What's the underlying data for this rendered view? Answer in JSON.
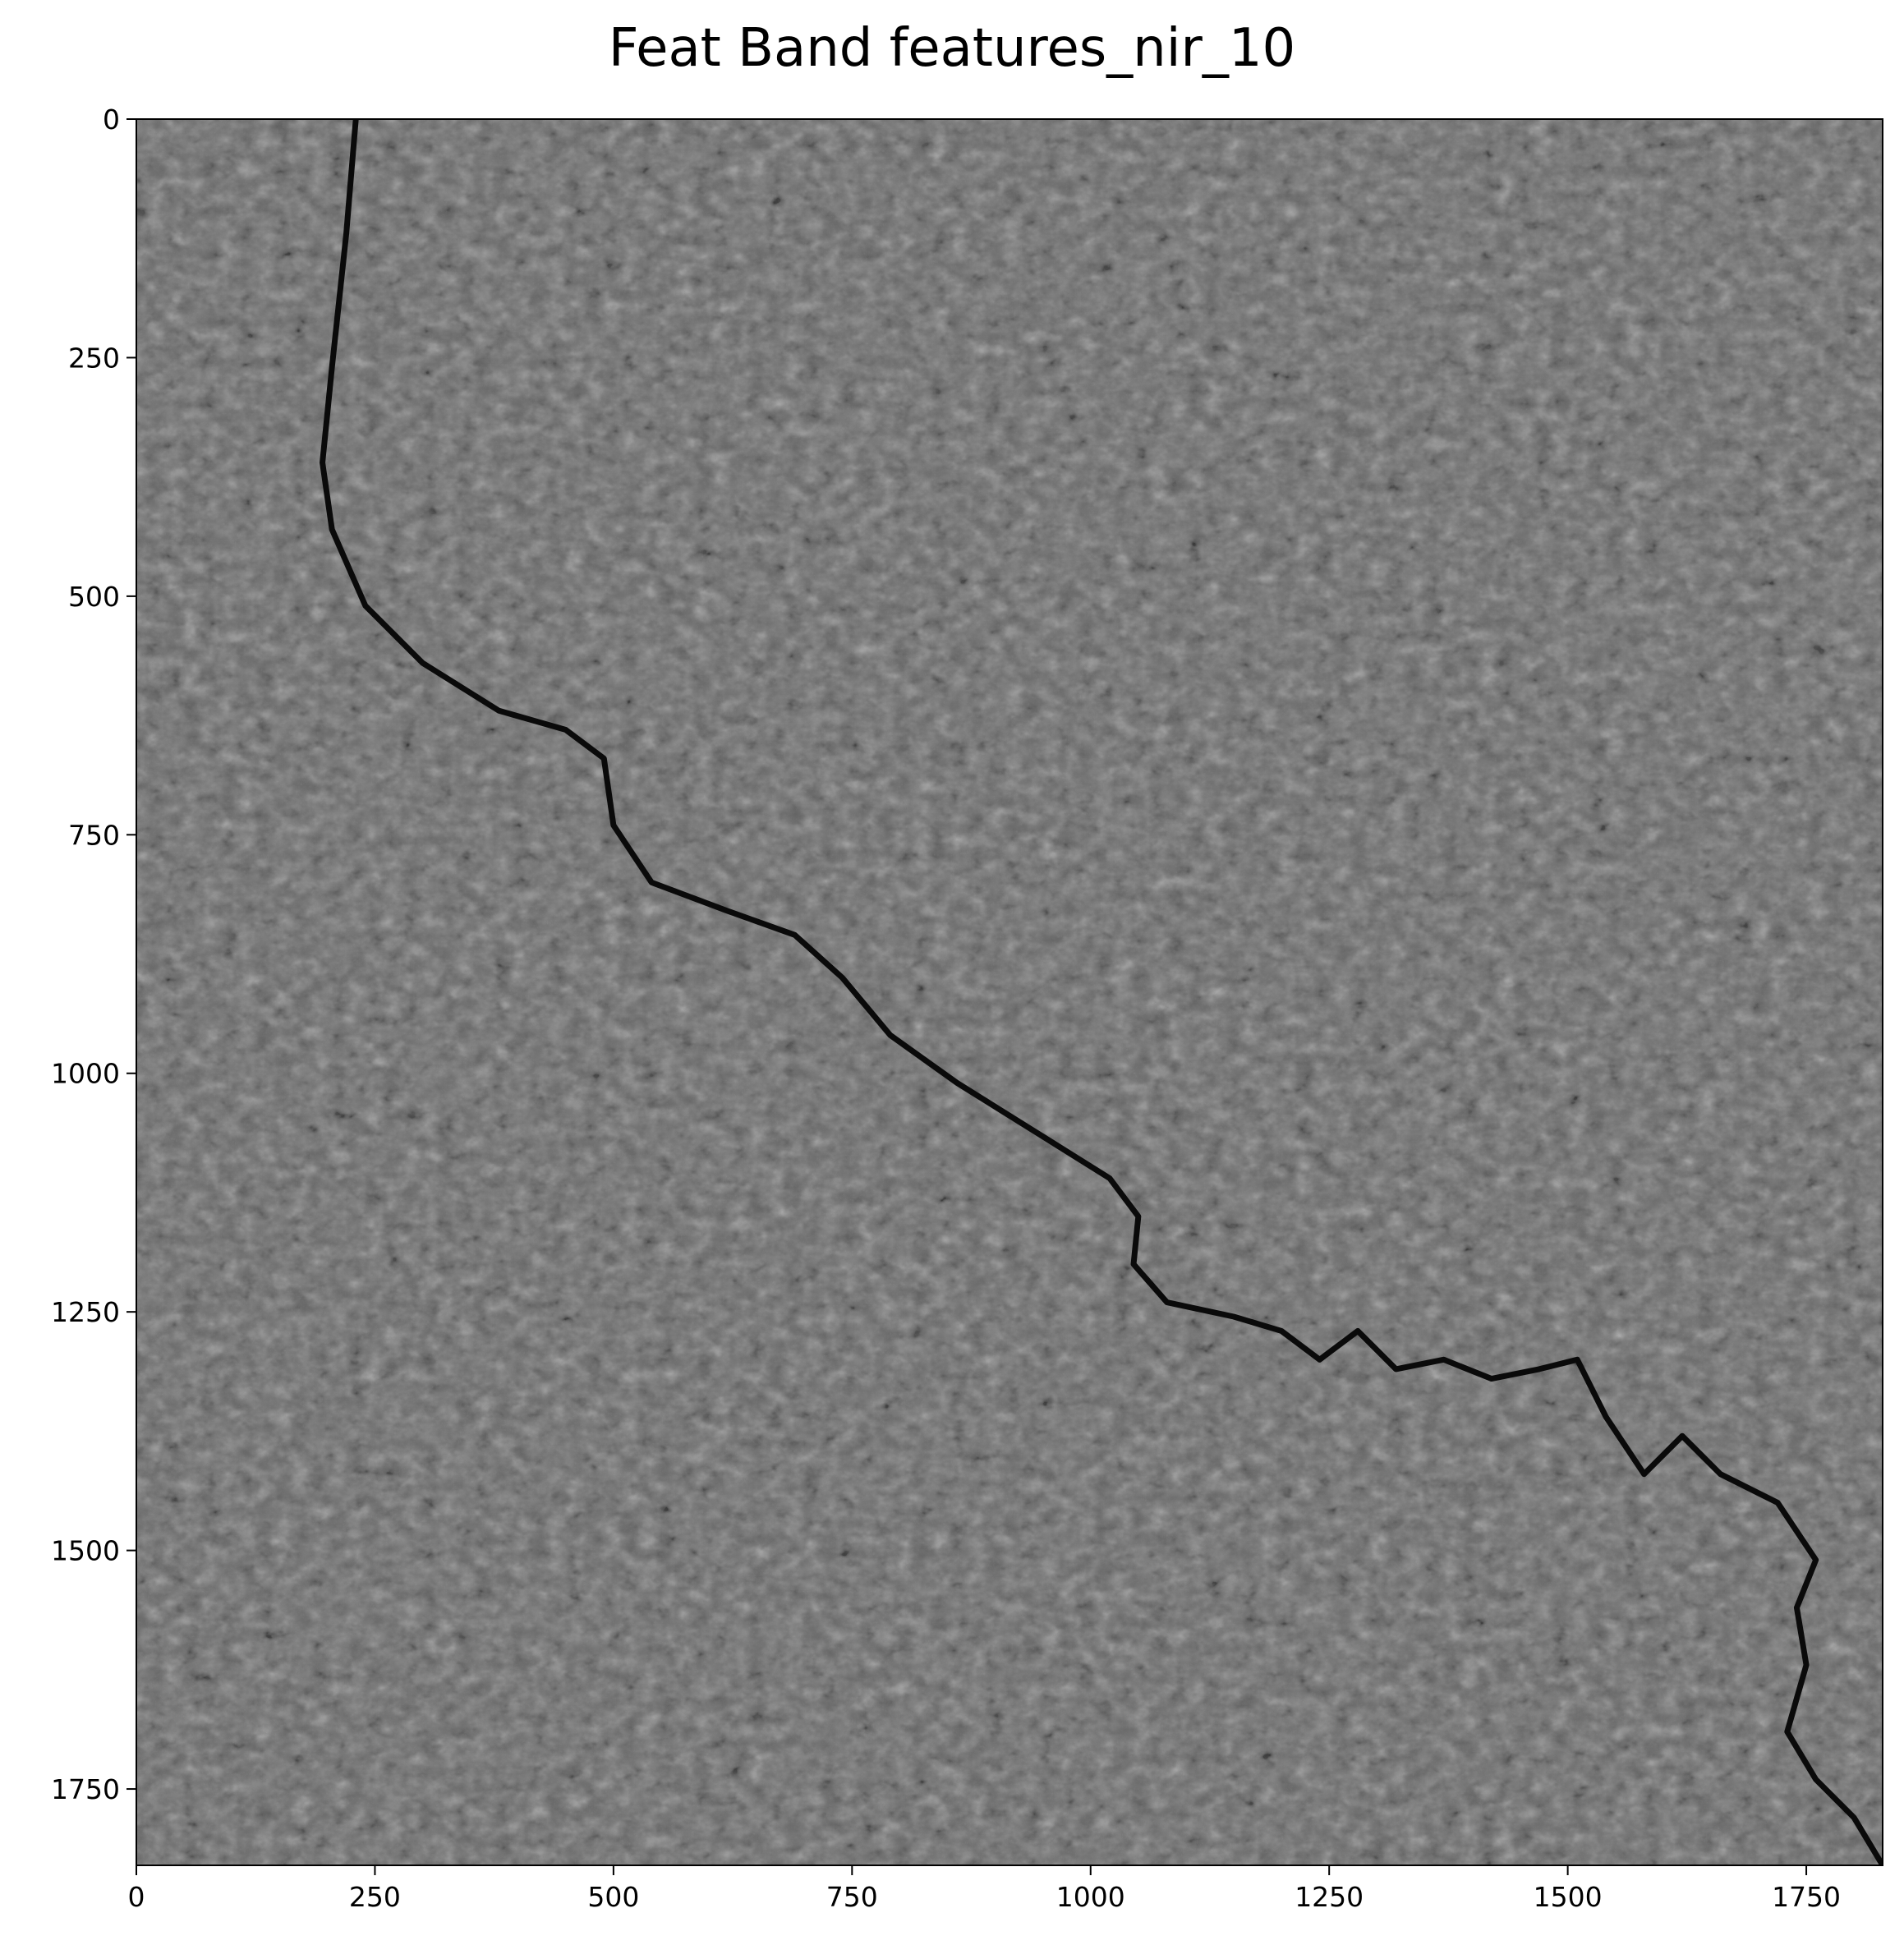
{
  "title": "Feat Band features_nir_10",
  "image": {
    "colormap": "gray",
    "x_range": [
      0,
      1830
    ],
    "y_range": [
      0,
      1830
    ],
    "y_axis_inverted": true,
    "content": "grayscale satellite near-infrared band over agricultural land with a dark meandering river crossing from top-left to bottom-right"
  },
  "axes": {
    "x_ticks": [
      "0",
      "250",
      "500",
      "750",
      "1000",
      "1250",
      "1500",
      "1750"
    ],
    "y_ticks": [
      "0",
      "250",
      "500",
      "750",
      "1000",
      "1250",
      "1500",
      "1750"
    ]
  },
  "river": {
    "path": [
      [
        230,
        0
      ],
      [
        220,
        120
      ],
      [
        205,
        260
      ],
      [
        195,
        360
      ],
      [
        205,
        430
      ],
      [
        240,
        510
      ],
      [
        300,
        570
      ],
      [
        380,
        620
      ],
      [
        450,
        640
      ],
      [
        490,
        670
      ],
      [
        500,
        740
      ],
      [
        540,
        800
      ],
      [
        620,
        830
      ],
      [
        690,
        855
      ],
      [
        740,
        900
      ],
      [
        790,
        960
      ],
      [
        860,
        1010
      ],
      [
        940,
        1060
      ],
      [
        1020,
        1110
      ],
      [
        1050,
        1150
      ],
      [
        1045,
        1200
      ],
      [
        1080,
        1240
      ],
      [
        1150,
        1255
      ],
      [
        1200,
        1270
      ],
      [
        1240,
        1300
      ],
      [
        1280,
        1270
      ],
      [
        1320,
        1310
      ],
      [
        1370,
        1300
      ],
      [
        1420,
        1320
      ],
      [
        1470,
        1310
      ],
      [
        1510,
        1300
      ],
      [
        1540,
        1360
      ],
      [
        1580,
        1420
      ],
      [
        1620,
        1380
      ],
      [
        1660,
        1420
      ],
      [
        1720,
        1450
      ],
      [
        1760,
        1510
      ],
      [
        1740,
        1560
      ],
      [
        1750,
        1620
      ],
      [
        1730,
        1690
      ],
      [
        1760,
        1740
      ],
      [
        1800,
        1780
      ],
      [
        1830,
        1830
      ]
    ]
  },
  "colors": {
    "background": "#ffffff",
    "axis": "#000000",
    "image_base": "#6a6a6a",
    "river": "#0a0a0a"
  }
}
